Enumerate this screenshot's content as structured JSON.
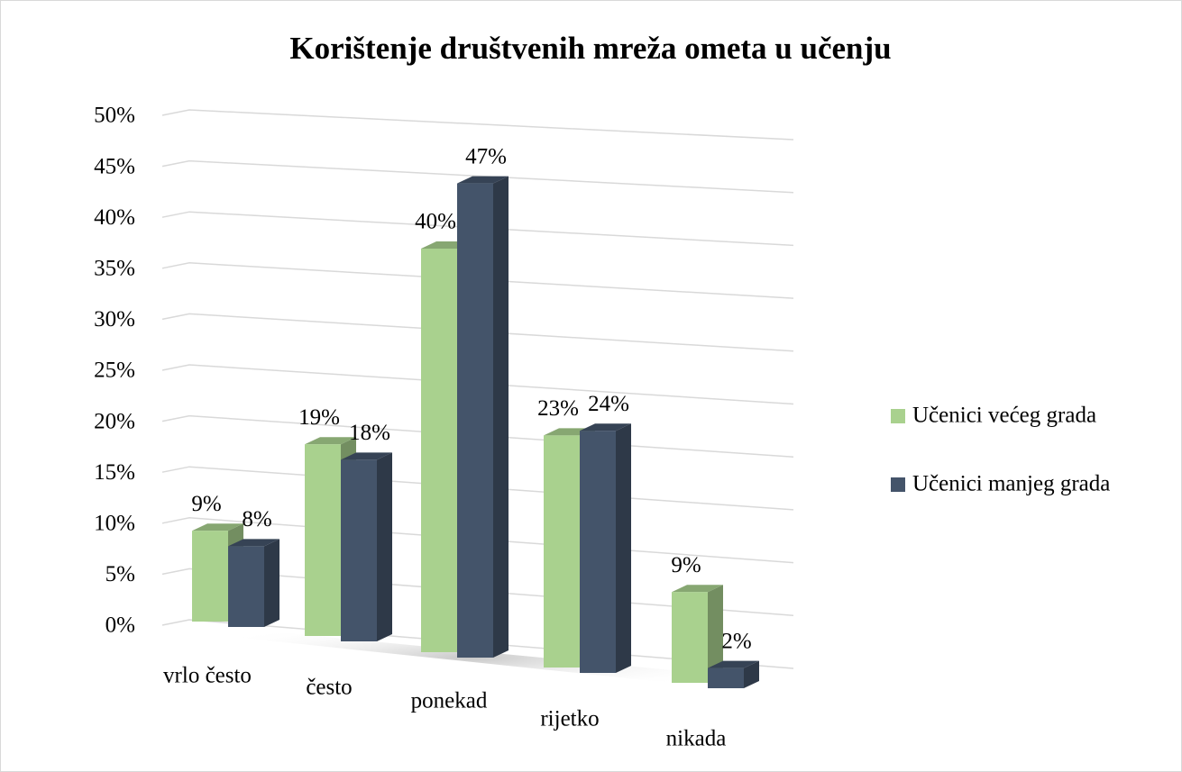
{
  "chart_data": {
    "type": "bar3d",
    "title": "Korištenje društvenih mreža ometa u učenju",
    "categories": [
      "vrlo često",
      "često",
      "ponekad",
      "rijetko",
      "nikada"
    ],
    "series": [
      {
        "name": "Učenici većeg grada",
        "color": "#a9d18e",
        "values": [
          9,
          19,
          40,
          23,
          9
        ],
        "value_labels": [
          "9%",
          "19%",
          "40%",
          "23%",
          "9%"
        ]
      },
      {
        "name": "Učenici manjeg grada",
        "color": "#44546a",
        "values": [
          8,
          18,
          47,
          24,
          2
        ],
        "value_labels": [
          "8%",
          "18%",
          "47%",
          "24%",
          "2%"
        ]
      }
    ],
    "ylim": [
      0,
      50
    ],
    "yticks": [
      {
        "value": 0,
        "label": "0%"
      },
      {
        "value": 5,
        "label": "5%"
      },
      {
        "value": 10,
        "label": "10%"
      },
      {
        "value": 15,
        "label": "15%"
      },
      {
        "value": 20,
        "label": "20%"
      },
      {
        "value": 25,
        "label": "25%"
      },
      {
        "value": 30,
        "label": "30%"
      },
      {
        "value": 35,
        "label": "35%"
      },
      {
        "value": 40,
        "label": "40%"
      },
      {
        "value": 45,
        "label": "45%"
      },
      {
        "value": 50,
        "label": "50%"
      }
    ],
    "grid": true,
    "legend": "right"
  }
}
